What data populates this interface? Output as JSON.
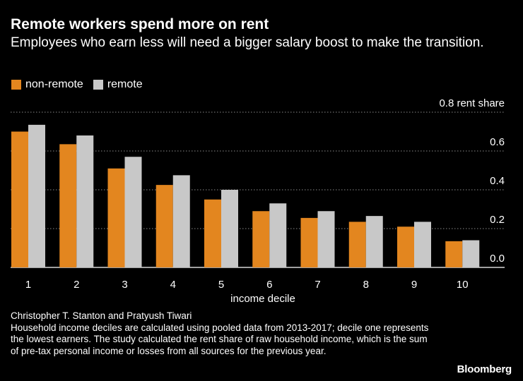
{
  "chart_data": {
    "type": "bar",
    "title": "Remote workers spend more on rent",
    "subtitle": "Employees who earn less will need a bigger salary boost to make the transition.",
    "xlabel": "income decile",
    "ylabel": "rent share",
    "top_tick_label": "0.8 rent share",
    "categories": [
      "1",
      "2",
      "3",
      "4",
      "5",
      "6",
      "7",
      "8",
      "9",
      "10"
    ],
    "series": [
      {
        "name": "non-remote",
        "color": "#e3861f",
        "values": [
          0.7,
          0.635,
          0.51,
          0.425,
          0.35,
          0.29,
          0.255,
          0.235,
          0.21,
          0.135
        ]
      },
      {
        "name": "remote",
        "color": "#c8c8c8",
        "values": [
          0.735,
          0.68,
          0.57,
          0.475,
          0.4,
          0.33,
          0.29,
          0.265,
          0.235,
          0.14
        ]
      }
    ],
    "ylim": [
      0,
      0.8
    ],
    "yticks": [
      0,
      0.2,
      0.4,
      0.6,
      0.8
    ],
    "ytick_labels": [
      "0.0",
      "0.2",
      "0.4",
      "0.6",
      "0.8"
    ],
    "grid": true,
    "legend_position": "top-left"
  },
  "source": {
    "authors": "Christopher T. Stanton and Pratyush Tiwari",
    "note": "Household income deciles are calculated using pooled data from 2013-2017; decile one represents the lowest earners. The study calculated the rent share of raw household income, which is the sum of pre-tax personal income or losses from all sources for the previous year."
  },
  "brand": "Bloomberg",
  "colors": {
    "background": "#000000",
    "text": "#ffffff",
    "grid": "#8a8a8a"
  }
}
